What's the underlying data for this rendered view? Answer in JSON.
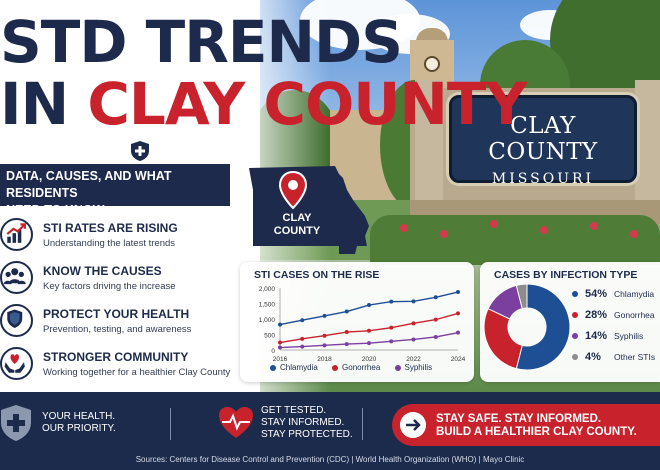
{
  "title": {
    "line1": "STD TRENDS",
    "line2_prefix": "IN",
    "line2_highlight": "CLAY COUNTY"
  },
  "subtitle": {
    "line1": "DATA, CAUSES, AND WHAT RESIDENTS",
    "line2": "NEED TO KNOW"
  },
  "map_label": {
    "line1": "CLAY",
    "line2": "COUNTY"
  },
  "sign": {
    "title": "CLAY COUNTY",
    "subtitle": "MISSOURI"
  },
  "points": [
    {
      "icon": "rising-chart-icon",
      "title": "STI RATES ARE RISING",
      "desc": "Understanding the latest trends"
    },
    {
      "icon": "group-icon",
      "title": "KNOW THE CAUSES",
      "desc": "Key factors driving the increase"
    },
    {
      "icon": "shield-icon",
      "title": "PROTECT YOUR HEALTH",
      "desc": "Prevention, testing, and awareness"
    },
    {
      "icon": "heart-hands-icon",
      "title": "STRONGER COMMUNITY",
      "desc": "Working together for a healthier Clay County"
    }
  ],
  "chart_data": [
    {
      "type": "line",
      "title": "STI CASES ON THE RISE",
      "x": [
        2016,
        2017,
        2018,
        2019,
        2020,
        2021,
        2022,
        2023,
        2024
      ],
      "x_tick_labels": [
        "2016",
        "2018",
        "2020",
        "2022",
        "2024"
      ],
      "y_tick_labels": [
        "0",
        "500",
        "1,000",
        "1,500",
        "2,000"
      ],
      "ylim": [
        0,
        2000
      ],
      "series": [
        {
          "name": "Chlamydia",
          "color": "#1e4f95",
          "values": [
            820,
            960,
            1100,
            1240,
            1450,
            1560,
            1570,
            1700,
            1870
          ]
        },
        {
          "name": "Gonorrhea",
          "color": "#c8232d",
          "values": [
            240,
            360,
            460,
            580,
            620,
            720,
            860,
            980,
            1180
          ]
        },
        {
          "name": "Syphilis",
          "color": "#7b3fa0",
          "values": [
            80,
            110,
            150,
            190,
            220,
            280,
            340,
            420,
            560
          ]
        }
      ],
      "legend": "bottom"
    },
    {
      "type": "pie",
      "title": "CASES BY INFECTION TYPE",
      "slices": [
        {
          "label": "Chlamydia",
          "pct_label": "54%",
          "value": 54,
          "color": "#1e4f95"
        },
        {
          "label": "Gonorrhea",
          "pct_label": "28%",
          "value": 28,
          "color": "#c8232d"
        },
        {
          "label": "Syphilis",
          "pct_label": "14%",
          "value": 14,
          "color": "#7b3fa0"
        },
        {
          "label": "Other STIs",
          "pct_label": "4%",
          "value": 4,
          "color": "#8c8c8c"
        }
      ],
      "donut": true,
      "legend": "right"
    }
  ],
  "footer": {
    "health_line1": "YOUR HEALTH.",
    "health_line2": "OUR PRIORITY.",
    "test_line1": "GET TESTED.",
    "test_line2": "STAY INFORMED.",
    "test_line3": "STAY PROTECTED.",
    "cta_line1": "STAY SAFE. STAY INFORMED.",
    "cta_line2": "BUILD A HEALTHIER CLAY COUNTY.",
    "sources": "Sources: Centers for Disease Control and Prevention (CDC)  |  World Health Organization (WHO)  |  Mayo Clinic"
  },
  "colors": {
    "navy": "#1d2a4b",
    "red": "#c8232d",
    "chlamydia": "#1e4f95",
    "gonorrhea": "#c8232d",
    "syphilis": "#7b3fa0",
    "other": "#8c8c8c"
  }
}
